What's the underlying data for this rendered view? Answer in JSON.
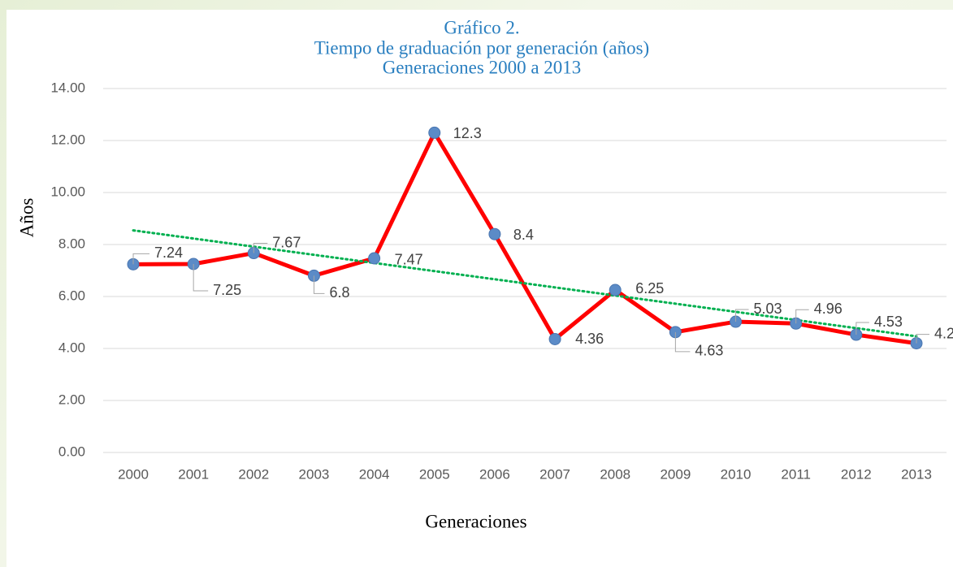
{
  "chart_data": {
    "type": "line",
    "title": [
      "Gráfico 2.",
      "Tiempo de graduación por generación  (años)",
      "Generaciones 2000 a 2013"
    ],
    "x_label": "Generaciones",
    "y_label": "Años",
    "categories": [
      "2000",
      "2001",
      "2002",
      "2003",
      "2004",
      "2005",
      "2006",
      "2007",
      "2008",
      "2009",
      "2010",
      "2011",
      "2012",
      "2013"
    ],
    "series": [
      {
        "name": "Tiempo de graduación",
        "color": "#ff0000",
        "marker_color": "#5b8bc7",
        "values": [
          7.24,
          7.25,
          7.67,
          6.8,
          7.47,
          12.3,
          8.4,
          4.36,
          6.25,
          4.63,
          5.03,
          4.96,
          4.53,
          4.2
        ]
      }
    ],
    "trendline": {
      "type": "linear",
      "color": "#00b050"
    },
    "ylim": [
      0,
      14
    ],
    "yticks": [
      {
        "value": 0,
        "label": "0.00"
      },
      {
        "value": 2,
        "label": "2.00"
      },
      {
        "value": 4,
        "label": "4.00"
      },
      {
        "value": 6,
        "label": "6.00"
      },
      {
        "value": 8,
        "label": "8.00"
      },
      {
        "value": 10,
        "label": "10.00"
      },
      {
        "value": 12,
        "label": "12.00"
      },
      {
        "value": 14,
        "label": "14.00"
      }
    ],
    "grid": true
  }
}
